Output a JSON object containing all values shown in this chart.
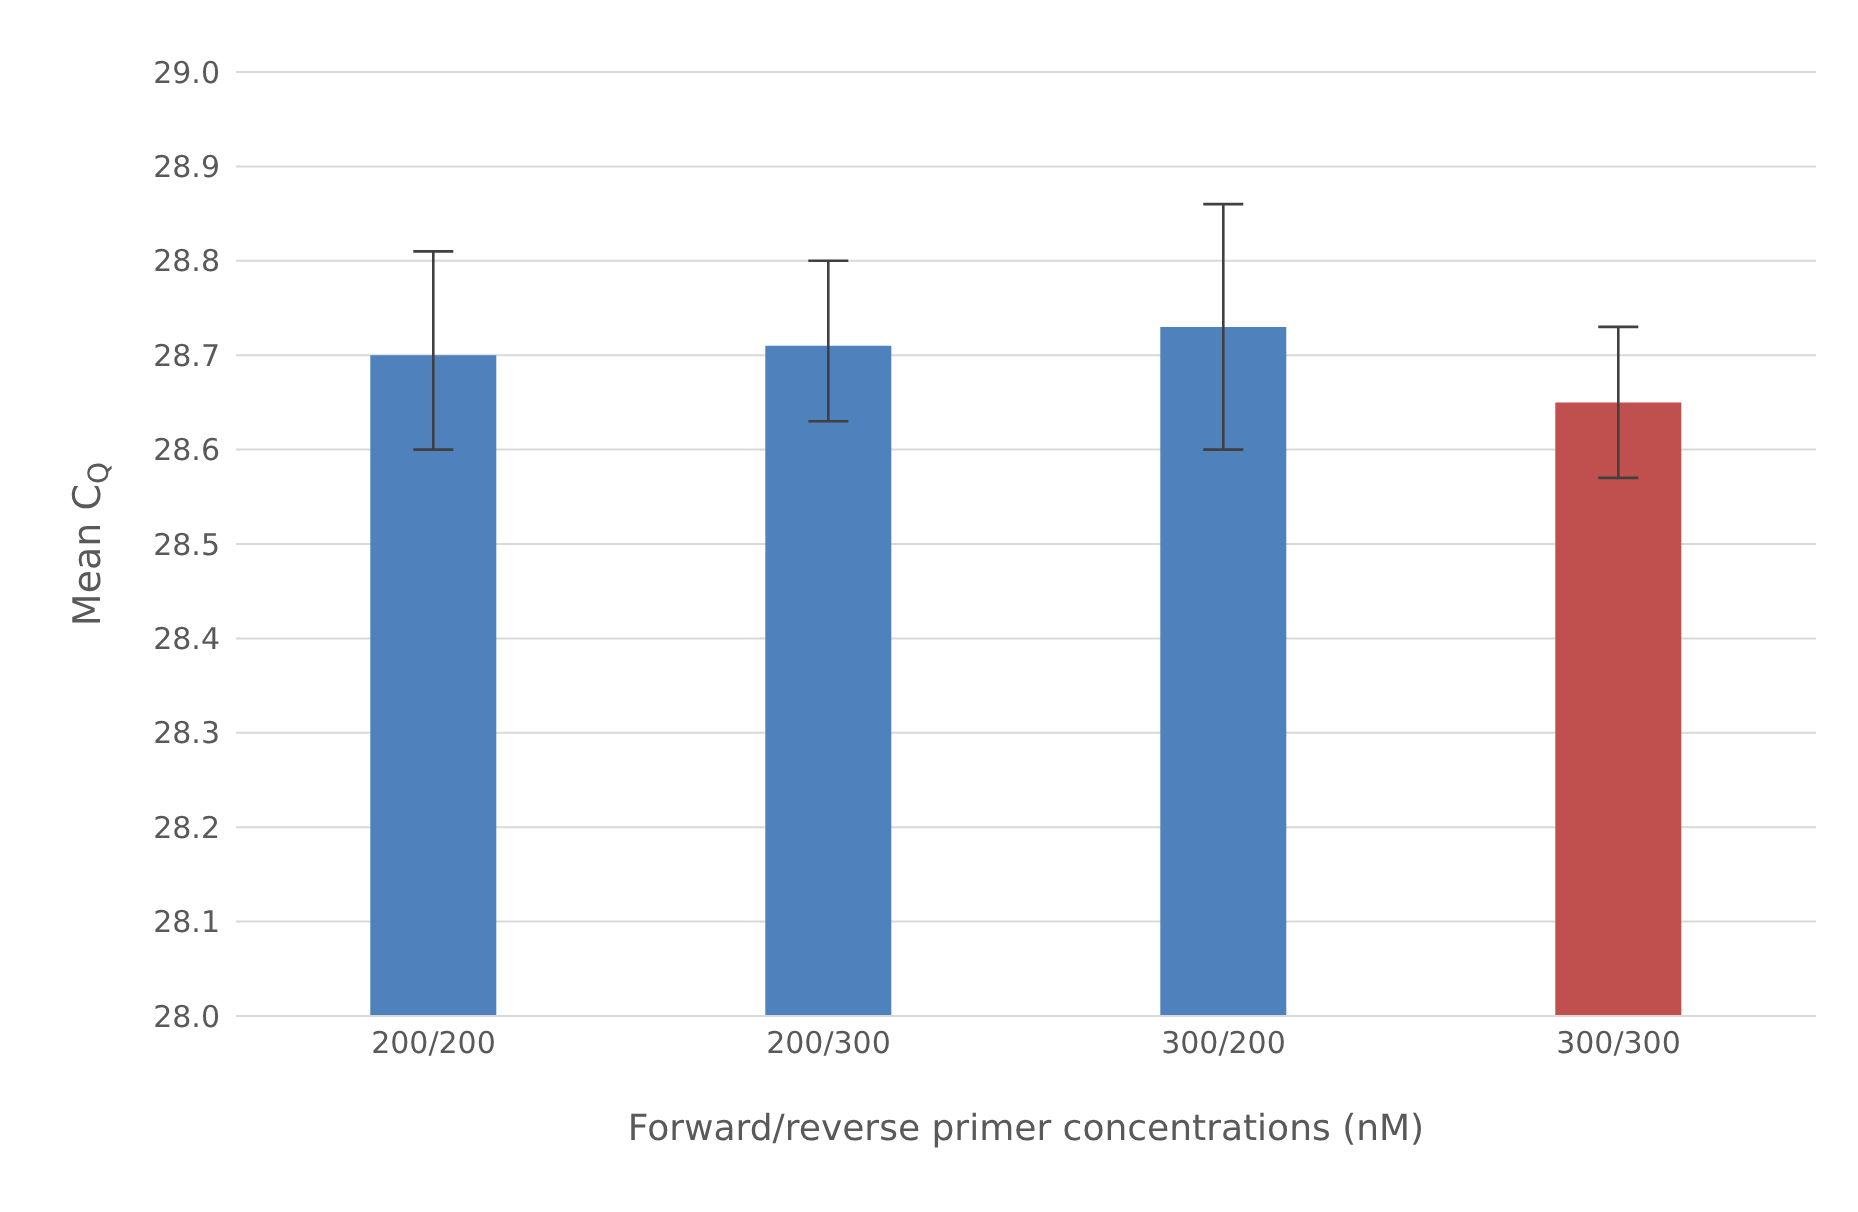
{
  "chart_data": {
    "type": "bar",
    "xlabel": "Forward/reverse primer concentrations (nM)",
    "ylabel": "Mean C$_{Q}$",
    "categories": [
      "200/200",
      "200/300",
      "300/200",
      "300/300"
    ],
    "values": [
      28.7,
      28.71,
      28.73,
      28.65
    ],
    "colors": [
      "#4f81bd",
      "#4f81bd",
      "#4f81bd",
      "#c0504d"
    ],
    "errors": [
      [
        28.6,
        28.81
      ],
      [
        28.63,
        28.8
      ],
      [
        28.6,
        28.86
      ],
      [
        28.57,
        28.73
      ]
    ],
    "ylim": [
      28.0,
      29.0
    ],
    "yticks": [
      {
        "value": 28.0,
        "label": "28.0"
      },
      {
        "value": 28.1,
        "label": "28.1"
      },
      {
        "value": 28.2,
        "label": "28.2"
      },
      {
        "value": 28.3,
        "label": "28.3"
      },
      {
        "value": 28.4,
        "label": "28.4"
      },
      {
        "value": 28.5,
        "label": "28.5"
      },
      {
        "value": 28.6,
        "label": "28.6"
      },
      {
        "value": 28.7,
        "label": "28.7"
      },
      {
        "value": 28.8,
        "label": "28.8"
      },
      {
        "value": 28.9,
        "label": "28.9"
      },
      {
        "value": 29.0,
        "label": "29.0"
      }
    ],
    "grid": "y",
    "legend": false
  }
}
